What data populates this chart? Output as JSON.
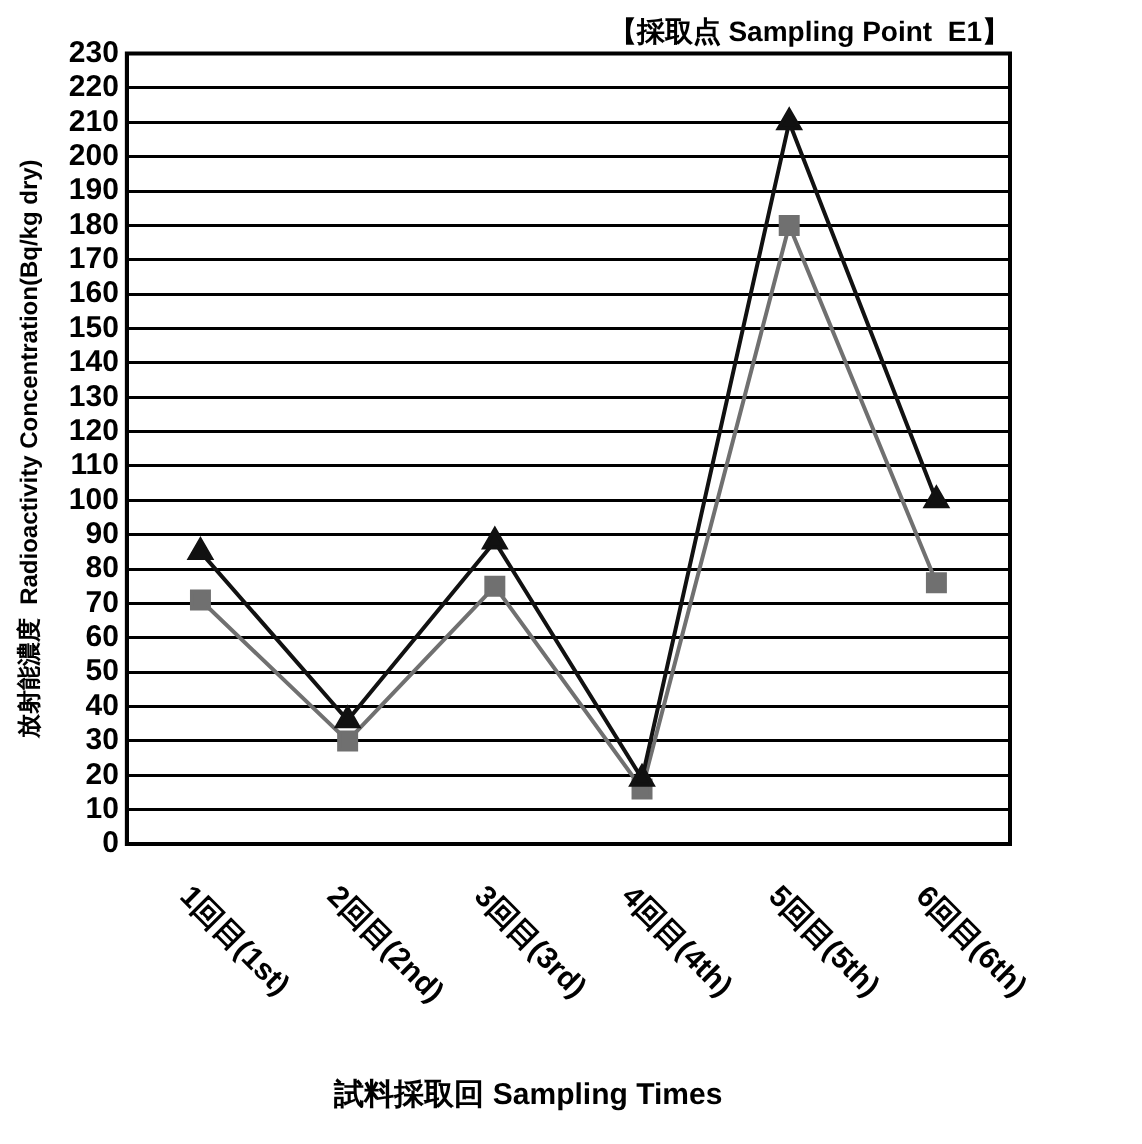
{
  "chart_data": {
    "type": "line",
    "title": "【採取点 Sampling Point  E1】",
    "xlabel": "試料採取回 Sampling Times",
    "ylabel": "放射能濃度  Radioactivity Concentration(Bq/kg dry)",
    "categories": [
      "1回目(1st)",
      "2回目(2nd)",
      "3回目(3rd)",
      "4回目(4th)",
      "5回目(5th)",
      "6回目(6th)"
    ],
    "series": [
      {
        "color": "#111111",
        "marker": "triangle",
        "values": [
          85,
          36,
          88,
          19,
          210,
          100
        ]
      },
      {
        "color": "#707070",
        "marker": "square",
        "values": [
          71,
          30,
          75,
          16,
          180,
          76
        ]
      }
    ],
    "ylim": [
      0,
      230
    ],
    "yticks": [
      0,
      10,
      20,
      30,
      40,
      50,
      60,
      70,
      80,
      90,
      100,
      110,
      120,
      130,
      140,
      150,
      160,
      170,
      180,
      190,
      200,
      210,
      220,
      230
    ],
    "grid": "y",
    "legend": false,
    "line_style": "solid"
  }
}
